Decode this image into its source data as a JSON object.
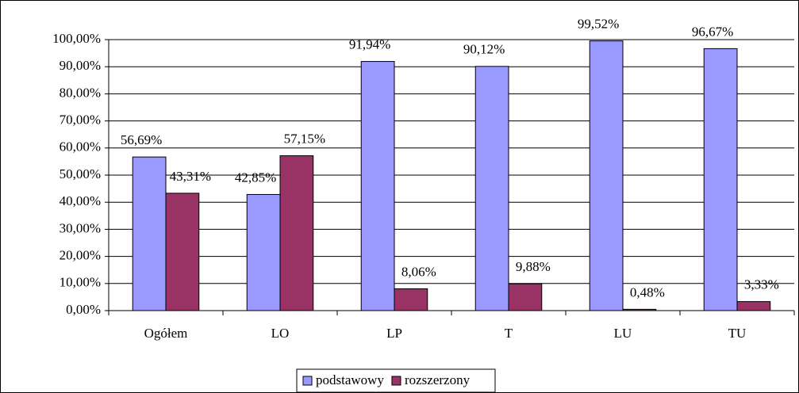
{
  "chart_data": {
    "type": "bar",
    "categories": [
      "Ogółem",
      "LO",
      "LP",
      "T",
      "LU",
      "TU"
    ],
    "series": [
      {
        "name": "podstawowy",
        "color": "#9999ff",
        "values": [
          56.69,
          42.85,
          91.94,
          90.12,
          99.52,
          96.67
        ],
        "value_labels": [
          "56,69%",
          "42,85%",
          "91,94%",
          "90,12%",
          "99,52%",
          "96,67%"
        ]
      },
      {
        "name": "rozszerzony",
        "color": "#993366",
        "values": [
          43.31,
          57.15,
          8.06,
          9.88,
          0.48,
          3.33
        ],
        "value_labels": [
          "43,31%",
          "57,15%",
          "8,06%",
          "9,88%",
          "0,48%",
          "3,33%"
        ]
      }
    ],
    "ylim": [
      0,
      100
    ],
    "yticks": [
      {
        "value": 0,
        "label": "0,00%"
      },
      {
        "value": 10,
        "label": "10,00%"
      },
      {
        "value": 20,
        "label": "20,00%"
      },
      {
        "value": 30,
        "label": "30,00%"
      },
      {
        "value": 40,
        "label": "40,00%"
      },
      {
        "value": 50,
        "label": "50,00%"
      },
      {
        "value": 60,
        "label": "60,00%"
      },
      {
        "value": 70,
        "label": "70,00%"
      },
      {
        "value": 80,
        "label": "80,00%"
      },
      {
        "value": 90,
        "label": "90,00%"
      },
      {
        "value": 100,
        "label": "100,00%"
      }
    ],
    "grid": true,
    "legend": "bottom"
  }
}
